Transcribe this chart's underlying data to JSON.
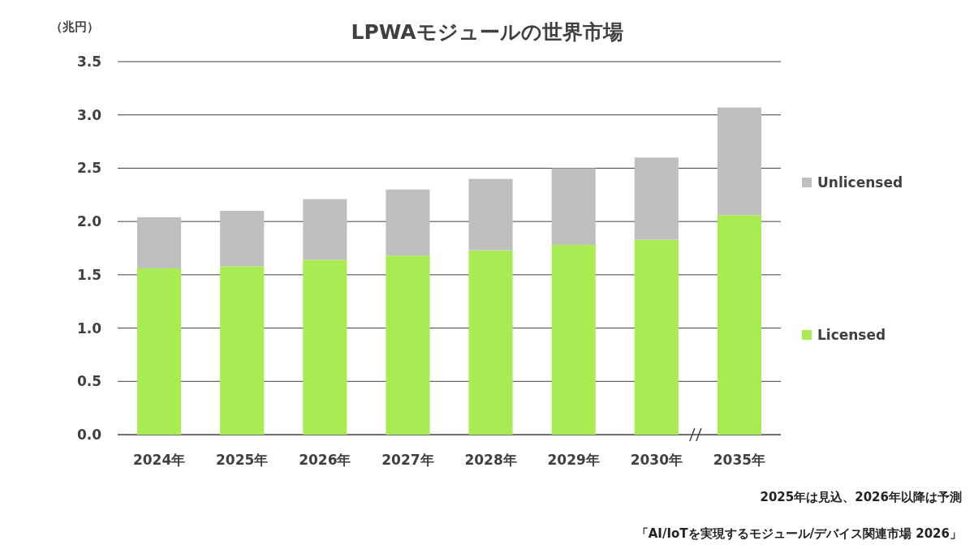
{
  "chart_data": {
    "type": "bar",
    "stacked": true,
    "title": "LPWAモジュールの世界市場",
    "ylabel": "（兆円）",
    "categories": [
      "2024年",
      "2025年",
      "2026年",
      "2027年",
      "2028年",
      "2029年",
      "2030年",
      "2035年"
    ],
    "series": [
      {
        "name": "Licensed",
        "color": "#a9eb52",
        "values": [
          1.56,
          1.58,
          1.64,
          1.68,
          1.73,
          1.78,
          1.83,
          2.06
        ]
      },
      {
        "name": "Unlicensed",
        "color": "#bfbfbf",
        "values": [
          0.48,
          0.52,
          0.57,
          0.62,
          0.67,
          0.72,
          0.77,
          1.01
        ]
      }
    ],
    "ylim": [
      0,
      3.5
    ],
    "yticks": [
      {
        "value": 0,
        "label": "0.0"
      },
      {
        "value": 0.5,
        "label": "0.5"
      },
      {
        "value": 1,
        "label": "1.0"
      },
      {
        "value": 1.5,
        "label": "1.5"
      },
      {
        "value": 2,
        "label": "2.0"
      },
      {
        "value": 2.5,
        "label": "2.5"
      },
      {
        "value": 3,
        "label": "3.0"
      },
      {
        "value": 3.5,
        "label": "3.5"
      }
    ],
    "grid": "y",
    "legend": "right",
    "annotations": [
      "2025年は見込、2026年以降は予測",
      "「AI/IoTを実現するモジュール/デバイス関連市場 2026」"
    ]
  }
}
